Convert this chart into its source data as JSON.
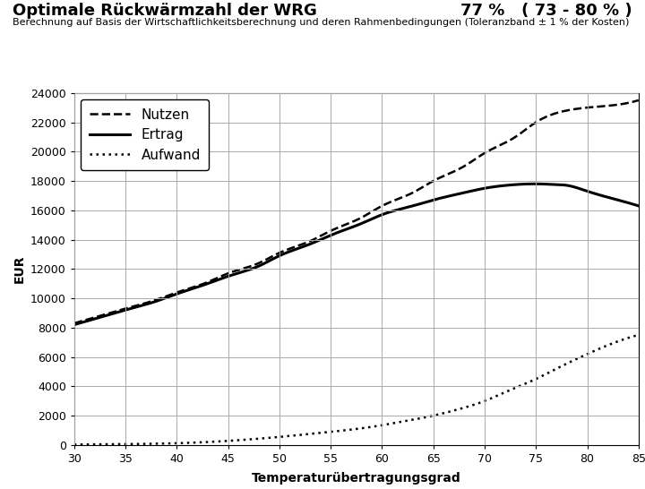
{
  "title_left": "Optimale Rückwärmzahl der WRG",
  "title_right": "77 %   ( 73 - 80 % )",
  "subtitle": "Berechnung auf Basis der Wirtschaftlichkeitsberechnung und deren Rahmenbedingungen (Toleranzband ± 1 % der Kosten)",
  "xlabel": "Temperaturübertragungsgrad",
  "ylabel": "EUR",
  "xlim": [
    30,
    85
  ],
  "ylim": [
    0,
    24000
  ],
  "xticks": [
    30,
    35,
    40,
    45,
    50,
    55,
    60,
    65,
    70,
    75,
    80,
    85
  ],
  "yticks": [
    0,
    2000,
    4000,
    6000,
    8000,
    10000,
    12000,
    14000,
    16000,
    18000,
    20000,
    22000,
    24000
  ],
  "nutzen_x": [
    30,
    32,
    35,
    38,
    40,
    43,
    45,
    48,
    50,
    53,
    55,
    58,
    60,
    63,
    65,
    68,
    70,
    73,
    75,
    78,
    80,
    83,
    85
  ],
  "nutzen_y": [
    8300,
    8700,
    9300,
    9900,
    10400,
    11100,
    11700,
    12400,
    13100,
    13900,
    14600,
    15500,
    16300,
    17200,
    18000,
    19000,
    19900,
    21000,
    22000,
    22800,
    23000,
    23200,
    23500
  ],
  "ertrag_x": [
    30,
    32,
    35,
    38,
    40,
    43,
    45,
    48,
    50,
    53,
    55,
    58,
    60,
    63,
    65,
    68,
    70,
    73,
    75,
    77,
    78,
    80,
    83,
    85
  ],
  "ertrag_y": [
    8200,
    8600,
    9200,
    9800,
    10300,
    11000,
    11500,
    12200,
    12900,
    13700,
    14300,
    15100,
    15700,
    16300,
    16700,
    17200,
    17500,
    17750,
    17800,
    17750,
    17700,
    17300,
    16700,
    16300
  ],
  "aufwand_x": [
    30,
    35,
    40,
    45,
    50,
    55,
    57,
    60,
    62,
    65,
    67,
    70,
    72,
    75,
    77,
    80,
    82,
    85
  ],
  "aufwand_y": [
    30,
    60,
    120,
    280,
    550,
    900,
    1050,
    1350,
    1600,
    2000,
    2350,
    3000,
    3600,
    4500,
    5200,
    6200,
    6800,
    7500
  ],
  "line_color": "#000000",
  "background_color": "#ffffff",
  "grid_color": "#aaaaaa"
}
